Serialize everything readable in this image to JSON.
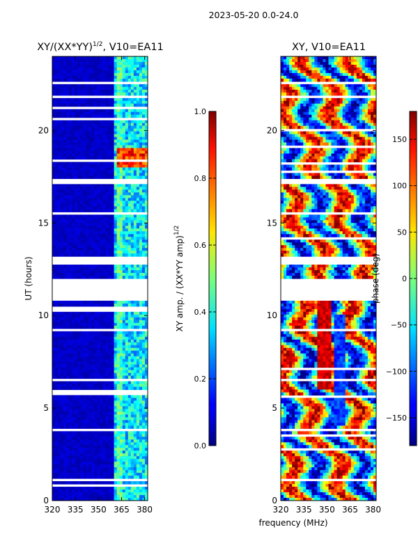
{
  "chart_data": {
    "suptitle": "2023-05-20 0.0-24.0",
    "type": "heatmap",
    "shared_xlabel": "frequency (MHz)",
    "panels": [
      {
        "id": "amp",
        "title_main": "XY/(XX*YY)",
        "title_exp": "1/2",
        "title_suffix": ", V10=EA11",
        "ylabel": "UT (hours)",
        "xlim": [
          320,
          382
        ],
        "ylim": [
          0,
          24
        ],
        "xticks": [
          320,
          335,
          350,
          365,
          380
        ],
        "yticks": [
          0,
          5,
          10,
          15,
          20
        ],
        "colormap": "jet",
        "colorbar": {
          "label_main": "XY amp. / (XX*YY amp)",
          "label_exp": "1/2",
          "range": [
            0.0,
            1.0
          ],
          "ticks": [
            "0.0",
            "0.2",
            "0.4",
            "0.6",
            "0.8",
            "1.0"
          ]
        }
      },
      {
        "id": "phase",
        "title_main": "XY, V10=EA11",
        "title_exp": "",
        "title_suffix": "",
        "ylabel": "",
        "xlim": [
          320,
          382
        ],
        "ylim": [
          0,
          24
        ],
        "xticks": [
          320,
          335,
          350,
          365,
          380
        ],
        "yticks": [
          0,
          5,
          10,
          15,
          20
        ],
        "colormap": "jet",
        "colorbar": {
          "label_main": "phase (deg)",
          "label_exp": "",
          "range": [
            -180,
            180
          ],
          "ticks": [
            "−150",
            "−100",
            "−50",
            "0",
            "50",
            "100",
            "150"
          ]
        }
      }
    ],
    "gap_bands_ut": [
      [
        10.8,
        12.0
      ],
      [
        12.8,
        13.2
      ],
      [
        17.1,
        17.4
      ],
      [
        6.4,
        6.6
      ],
      [
        3.8,
        3.95
      ],
      [
        15.4,
        15.6
      ],
      [
        21.7,
        21.9
      ],
      [
        22.5,
        22.6
      ],
      [
        16.0,
        16.1
      ],
      [
        9.1,
        9.25
      ],
      [
        0.25,
        0.35
      ],
      [
        1.1,
        1.2
      ]
    ]
  }
}
